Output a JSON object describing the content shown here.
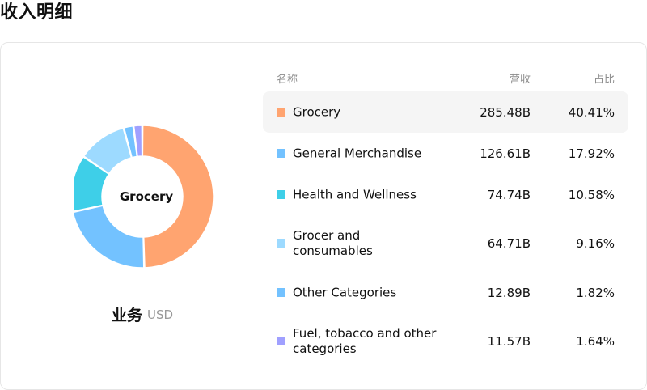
{
  "page": {
    "title": "收入明细"
  },
  "breakdown": {
    "selected": "Grocery",
    "segment_label": "业务",
    "currency": "USD",
    "columns": {
      "name": "名称",
      "revenue": "营收",
      "share": "占比"
    },
    "rows": [
      {
        "name": "Grocery",
        "revenue": "285.48B",
        "share": "40.41%",
        "color": "#FFA470"
      },
      {
        "name": "General Merchandise",
        "revenue": "126.61B",
        "share": "17.92%",
        "color": "#73C2FF"
      },
      {
        "name": "Health and Wellness",
        "revenue": "74.74B",
        "share": "10.58%",
        "color": "#3ECFE8"
      },
      {
        "name": "Grocer and consumables",
        "revenue": "64.71B",
        "share": "9.16%",
        "color": "#9DDAFF"
      },
      {
        "name": "Other Categories",
        "revenue": "12.89B",
        "share": "1.82%",
        "color": "#73C2FF"
      },
      {
        "name": "Fuel, tobacco and other categories",
        "revenue": "11.57B",
        "share": "1.64%",
        "color": "#A0A0FF"
      }
    ]
  },
  "chart_data": {
    "type": "pie",
    "unit": "B USD",
    "categories": [
      "Grocery",
      "General Merchandise",
      "Health and Wellness",
      "Grocer and consumables",
      "Other Categories",
      "Fuel, tobacco and other categories"
    ],
    "values": [
      285.48,
      126.61,
      74.74,
      64.71,
      12.89,
      11.57
    ],
    "percent": [
      40.41,
      17.92,
      10.58,
      9.16,
      1.82,
      1.64
    ],
    "colors": [
      "#FFA470",
      "#73C2FF",
      "#3ECFE8",
      "#9DDAFF",
      "#73C2FF",
      "#A0A0FF"
    ],
    "center_label": "Grocery"
  }
}
